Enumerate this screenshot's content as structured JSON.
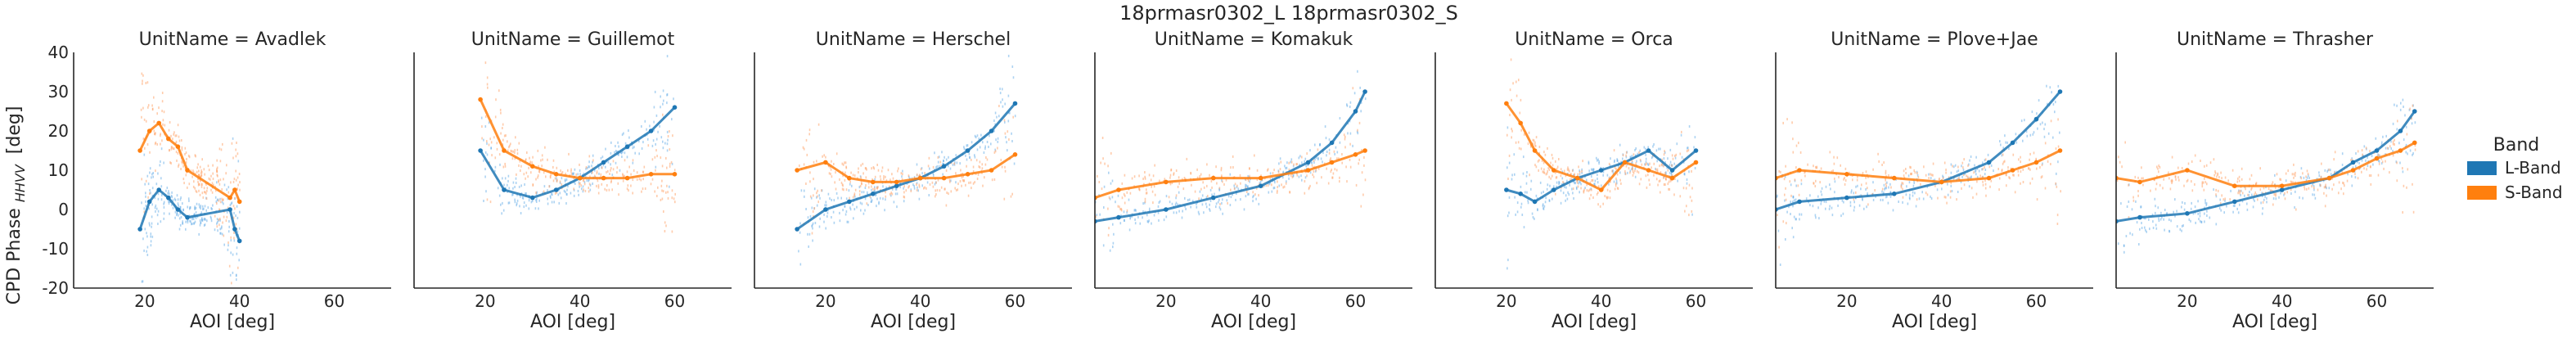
{
  "chart_data": {
    "type": "scatter",
    "title": "18prmasr0302_L 18prmasr0302_S",
    "facet_label_template": "UnitName = {unit}",
    "xlabel": "AOI [deg]",
    "ylabel_main": "CPD Phase",
    "ylabel_sub": "HHVV",
    "ylabel_unit": "[deg]",
    "xlim": [
      5,
      72
    ],
    "ylim": [
      -20,
      40
    ],
    "xticks": [
      20,
      40,
      60
    ],
    "yticks": [
      -20,
      -10,
      0,
      10,
      20,
      30,
      40
    ],
    "legend": {
      "title": "Band",
      "placement": "right",
      "entries": [
        {
          "label": "L-Band",
          "color": "#1f77b4"
        },
        {
          "label": "S-Band",
          "color": "#ff7f0e"
        }
      ]
    },
    "colors": {
      "L-Band": "#1f77b4",
      "S-Band": "#ff7f0e",
      "L-Band-light": "#6aaee8",
      "S-Band-light": "#ffa367"
    },
    "facets": [
      {
        "unit": "Avadlek",
        "series": [
          {
            "name": "L-Band",
            "x": [
              19,
              21,
              23,
              25,
              27,
              29,
              38,
              39,
              40
            ],
            "y": [
              -5,
              2,
              5,
              3,
              0,
              -2,
              0,
              -5,
              -8
            ]
          },
          {
            "name": "S-Band",
            "x": [
              19,
              21,
              23,
              25,
              27,
              29,
              38,
              39,
              40
            ],
            "y": [
              15,
              20,
              22,
              18,
              16,
              10,
              3,
              5,
              2
            ]
          }
        ]
      },
      {
        "unit": "Guillemot",
        "series": [
          {
            "name": "L-Band",
            "x": [
              19,
              24,
              30,
              35,
              40,
              45,
              50,
              55,
              60
            ],
            "y": [
              15,
              5,
              3,
              5,
              8,
              12,
              16,
              20,
              26
            ]
          },
          {
            "name": "S-Band",
            "x": [
              19,
              24,
              30,
              35,
              40,
              45,
              50,
              55,
              60
            ],
            "y": [
              28,
              15,
              11,
              9,
              8,
              8,
              8,
              9,
              9
            ]
          }
        ]
      },
      {
        "unit": "Herschel",
        "series": [
          {
            "name": "L-Band",
            "x": [
              14,
              20,
              25,
              30,
              35,
              40,
              45,
              50,
              55,
              60
            ],
            "y": [
              -5,
              0,
              2,
              4,
              6,
              8,
              11,
              15,
              20,
              27
            ]
          },
          {
            "name": "S-Band",
            "x": [
              14,
              20,
              25,
              30,
              35,
              40,
              45,
              50,
              55,
              60
            ],
            "y": [
              10,
              12,
              8,
              7,
              7,
              8,
              8,
              9,
              10,
              14
            ]
          }
        ]
      },
      {
        "unit": "Komakuk",
        "series": [
          {
            "name": "L-Band",
            "x": [
              5,
              10,
              20,
              30,
              40,
              50,
              55,
              60,
              62
            ],
            "y": [
              -3,
              -2,
              0,
              3,
              6,
              12,
              17,
              25,
              30
            ]
          },
          {
            "name": "S-Band",
            "x": [
              5,
              10,
              20,
              30,
              40,
              50,
              55,
              60,
              62
            ],
            "y": [
              3,
              5,
              7,
              8,
              8,
              10,
              12,
              14,
              15
            ]
          }
        ]
      },
      {
        "unit": "Orca",
        "series": [
          {
            "name": "L-Band",
            "x": [
              20,
              23,
              26,
              30,
              35,
              40,
              45,
              50,
              55,
              60
            ],
            "y": [
              5,
              4,
              2,
              5,
              8,
              10,
              12,
              15,
              10,
              15
            ]
          },
          {
            "name": "S-Band",
            "x": [
              20,
              23,
              26,
              30,
              35,
              40,
              45,
              50,
              55,
              60
            ],
            "y": [
              27,
              22,
              15,
              10,
              8,
              5,
              12,
              10,
              8,
              12
            ]
          }
        ]
      },
      {
        "unit": "Plove+Jae",
        "series": [
          {
            "name": "L-Band",
            "x": [
              5,
              10,
              20,
              30,
              40,
              50,
              55,
              60,
              65
            ],
            "y": [
              0,
              2,
              3,
              4,
              7,
              12,
              17,
              23,
              30
            ]
          },
          {
            "name": "S-Band",
            "x": [
              5,
              10,
              20,
              30,
              40,
              50,
              55,
              60,
              65
            ],
            "y": [
              8,
              10,
              9,
              8,
              7,
              8,
              10,
              12,
              15
            ]
          }
        ]
      },
      {
        "unit": "Thrasher",
        "series": [
          {
            "name": "L-Band",
            "x": [
              5,
              10,
              20,
              30,
              40,
              50,
              55,
              60,
              65,
              68
            ],
            "y": [
              -3,
              -2,
              -1,
              2,
              5,
              8,
              12,
              15,
              20,
              25
            ]
          },
          {
            "name": "S-Band",
            "x": [
              5,
              10,
              20,
              30,
              40,
              50,
              55,
              60,
              65,
              68
            ],
            "y": [
              8,
              7,
              10,
              6,
              6,
              8,
              10,
              13,
              15,
              17
            ]
          }
        ]
      }
    ]
  }
}
